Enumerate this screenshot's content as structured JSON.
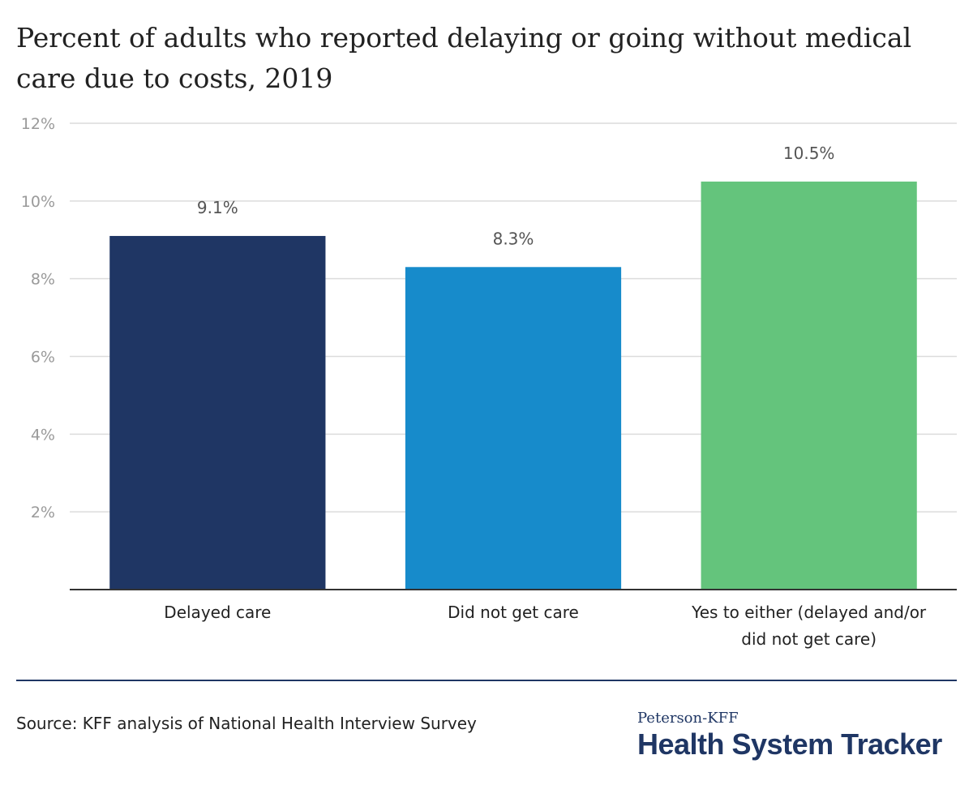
{
  "chart_data": {
    "type": "bar",
    "title": "Percent of adults who reported delaying or going without medical care due to costs, 2019",
    "categories": [
      [
        "Delayed care"
      ],
      [
        "Did not get care"
      ],
      [
        "Yes to either (delayed and/or",
        "did not get care)"
      ]
    ],
    "values": [
      9.1,
      8.3,
      10.5
    ],
    "value_labels": [
      "9.1%",
      "8.3%",
      "10.5%"
    ],
    "colors": [
      "#1f3664",
      "#178bcb",
      "#64c47c"
    ],
    "ylim": [
      0,
      12
    ],
    "yticks": [
      {
        "value": 2,
        "label": "2%"
      },
      {
        "value": 4,
        "label": "4%"
      },
      {
        "value": 6,
        "label": "6%"
      },
      {
        "value": 8,
        "label": "8%"
      },
      {
        "value": 10,
        "label": "10%"
      },
      {
        "value": 12,
        "label": "12%"
      }
    ],
    "grid": true
  },
  "footer": {
    "source": "Source: KFF analysis of National Health Interview Survey",
    "logo_top": "Peterson-KFF",
    "logo_main": "Health System Tracker"
  }
}
